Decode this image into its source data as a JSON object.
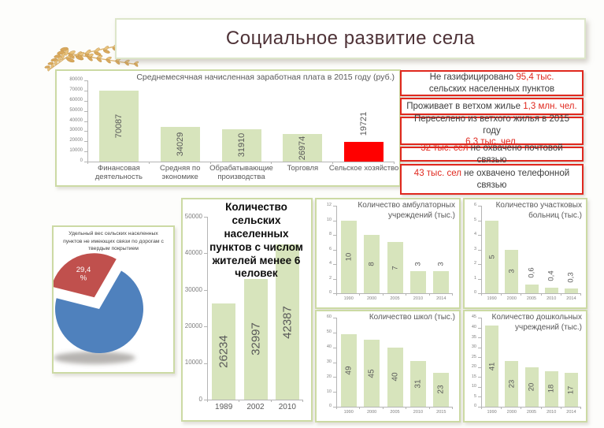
{
  "slide": {
    "title": "Социальное развитие села"
  },
  "colors": {
    "bar_green": "#d7e4bc",
    "bar_red": "#ff0000",
    "green_border": "#ccdaa4",
    "red_accent": "#e0281e",
    "title_maroon": "#4e3237",
    "pie_blue": "#4f81bd",
    "pie_red": "#c0504d",
    "axis_gray": "#b4b4b4",
    "label_gray": "#595959"
  },
  "stat_boxes": [
    {
      "lines": [
        [
          {
            "t": "Не газифицировано ",
            "red": false
          },
          {
            "t": "95,4 тыс.",
            "red": true
          }
        ],
        [
          {
            "t": "сельских населенных пунктов",
            "red": false
          }
        ]
      ]
    },
    {
      "lines": [
        [
          {
            "t": "Проживает в ветхом жилье ",
            "red": false
          },
          {
            "t": "1,3 млн. чел.",
            "red": true
          }
        ]
      ]
    },
    {
      "lines": [
        [
          {
            "t": "Переселено из ветхого жилья в 2015 году",
            "red": false
          }
        ],
        [
          {
            "t": "6,3 тыс. чел.",
            "red": true
          }
        ]
      ]
    },
    {
      "lines": [
        [
          {
            "t": "32 тыс. сел",
            "red": true
          },
          {
            "t": " не охвачено почтовой связью",
            "red": false
          }
        ]
      ]
    },
    {
      "lines": [
        [
          {
            "t": "43 тыс. сел",
            "red": true
          },
          {
            "t": " не охвачено телефонной",
            "red": false
          }
        ],
        [
          {
            "t": "связью",
            "red": false
          }
        ]
      ]
    }
  ],
  "chart_data": [
    {
      "id": "salary",
      "type": "bar",
      "title": "Среднемесячная начисленная заработная плата в 2015 году (руб.)",
      "categories": [
        "Финансовая деятельность",
        "Средняя по экономике",
        "Обрабатывающие производства",
        "Торговля",
        "Сельское хозяйство"
      ],
      "values": [
        70087,
        34029,
        31910,
        26974,
        19721
      ],
      "value_labels": [
        "70087",
        "34029",
        "31910",
        "26974",
        "19721"
      ],
      "ylim": [
        0,
        80000
      ],
      "ytick_step": 10000,
      "highlight_index": 4,
      "grid": false,
      "legend": "none",
      "label_outside": [
        4
      ]
    },
    {
      "id": "roads_pie",
      "type": "pie",
      "title": "Удельный вес сельских населенных пунктов не имеющих связи по дорогам с твердым покрытием",
      "slices": [
        {
          "value": 70.6,
          "color": "#4f81bd",
          "exploded": false,
          "data_label": ""
        },
        {
          "value": 29.4,
          "color": "#c0504d",
          "exploded": true,
          "data_label": "29,4 %"
        }
      ],
      "start_angle_deg": 30
    },
    {
      "id": "settlements",
      "type": "bar",
      "title": "Количество сельских населенных пунктов с числом жителей менее 6 человек",
      "categories": [
        "1989",
        "2002",
        "2010"
      ],
      "values": [
        26234,
        32997,
        42387
      ],
      "value_labels": [
        "26234",
        "32997",
        "42387"
      ],
      "ylim": [
        0,
        50000
      ],
      "ytick_step": 10000,
      "grid": false,
      "legend": "none",
      "label_outside": []
    },
    {
      "id": "ambulatory",
      "type": "bar",
      "title": "Количество амбулаторных учреждений (тыс.)",
      "categories": [
        "1990",
        "2000",
        "2005",
        "2010",
        "2014"
      ],
      "values": [
        10,
        8,
        7,
        3,
        3
      ],
      "value_labels": [
        "10",
        "8",
        "7",
        "3",
        "3"
      ],
      "ylim": [
        0,
        12
      ],
      "ytick_step": 2,
      "grid": false,
      "legend": "none",
      "label_outside": [
        3,
        4
      ]
    },
    {
      "id": "hospitals",
      "type": "bar",
      "title": "Количество участковых больниц (тыс.)",
      "categories": [
        "1990",
        "2000",
        "2005",
        "2010",
        "2014"
      ],
      "values": [
        5,
        3,
        0.6,
        0.4,
        0.3
      ],
      "value_labels": [
        "5",
        "3",
        "0,6",
        "0,4",
        "0,3"
      ],
      "ylim": [
        0,
        6
      ],
      "ytick_step": 1,
      "grid": false,
      "legend": "none",
      "label_outside": [
        2,
        3,
        4
      ]
    },
    {
      "id": "schools",
      "type": "bar",
      "title": "Количество школ (тыс.)",
      "categories": [
        "1990",
        "2000",
        "2005",
        "2010",
        "2015"
      ],
      "values": [
        49,
        45,
        40,
        31,
        23
      ],
      "value_labels": [
        "49",
        "45",
        "40",
        "31",
        "23"
      ],
      "ylim": [
        0,
        60
      ],
      "ytick_step": 10,
      "grid": false,
      "legend": "none",
      "label_outside": []
    },
    {
      "id": "kindergartens",
      "type": "bar",
      "title": "Количество дошкольных учреждений (тыс.)",
      "categories": [
        "1990",
        "2000",
        "2005",
        "2010",
        "2014"
      ],
      "values": [
        41,
        23,
        20,
        18,
        17
      ],
      "value_labels": [
        "41",
        "23",
        "20",
        "18",
        "17"
      ],
      "ylim": [
        0,
        45
      ],
      "ytick_step": 5,
      "grid": false,
      "legend": "none",
      "label_outside": []
    }
  ]
}
